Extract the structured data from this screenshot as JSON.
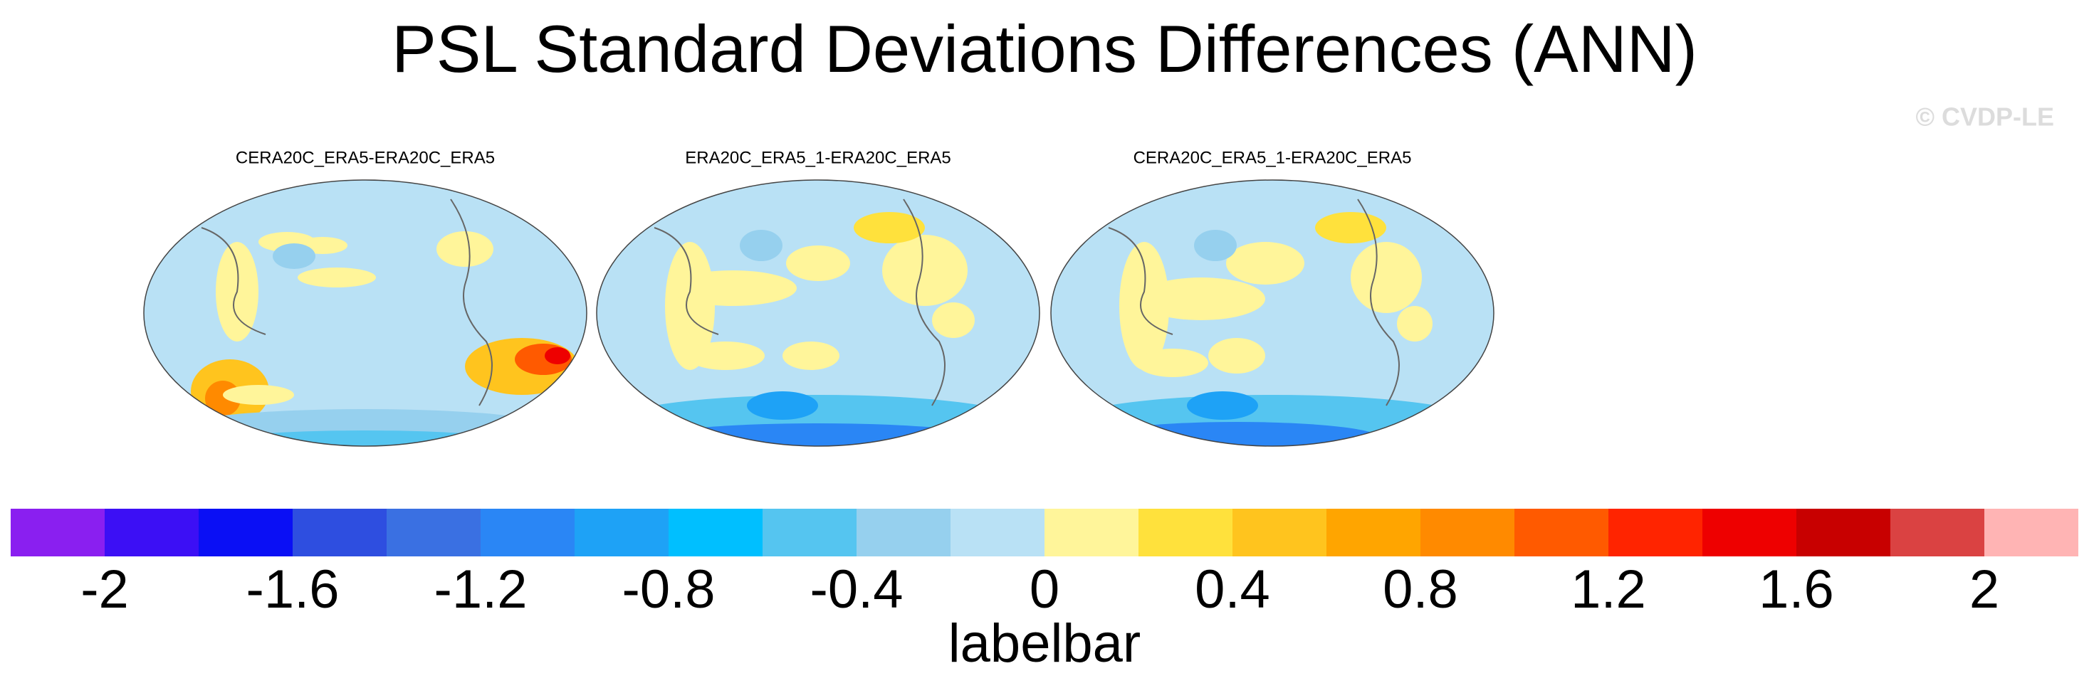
{
  "title": "PSL Standard Deviations Differences (ANN)",
  "watermark": "© CVDP-LE",
  "panels": [
    {
      "title": "CERA20C_ERA5-ERA20C_ERA5"
    },
    {
      "title": "ERA20C_ERA5_1-ERA20C_ERA5"
    },
    {
      "title": "CERA20C_ERA5_1-ERA20C_ERA5"
    }
  ],
  "colorbar": {
    "label": "labelbar",
    "lim": [
      -2.2,
      2.2
    ],
    "ticks": [
      -2,
      -1.6,
      -1.2,
      -0.8,
      -0.4,
      0,
      0.4,
      0.8,
      1.2,
      1.6,
      2
    ],
    "colors": [
      "#8a1ff0",
      "#3c0ff5",
      "#0a0ff5",
      "#2e4ee0",
      "#3a70e2",
      "#2a86f5",
      "#1ea2f6",
      "#00bfff",
      "#55c5f0",
      "#96d0ee",
      "#b9e1f5",
      "#fff59a",
      "#ffe13c",
      "#ffc41e",
      "#ffa500",
      "#ff8a00",
      "#ff5a00",
      "#ff2400",
      "#ee0000",
      "#c80000",
      "#da4242",
      "#ffb4b4"
    ]
  }
}
